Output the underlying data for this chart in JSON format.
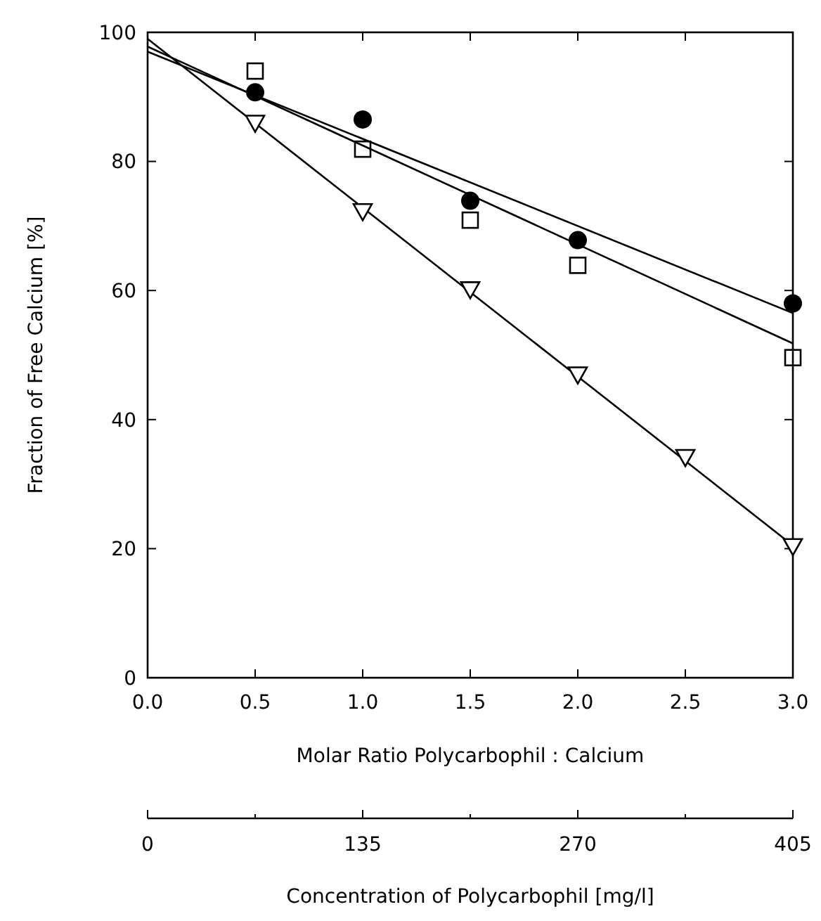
{
  "chart_data": {
    "type": "scatter",
    "xlabel": "Molar Ratio Polycarbophil : Calcium",
    "ylabel": "Fraction of Free Calcium [%]",
    "x2label": "Concentration of Polycarbophil [mg/l]",
    "xlim": [
      0,
      3
    ],
    "xticks": [
      {
        "value": 0,
        "label": "0.0"
      },
      0.5,
      {
        "value": 1,
        "label": "1.0"
      },
      1.5,
      {
        "value": 2,
        "label": "2.0"
      },
      2.5,
      {
        "value": 3,
        "label": "3.0"
      }
    ],
    "x2lim": [
      0,
      405
    ],
    "x2ticks": [
      0,
      {
        "value": 67.5,
        "label": null
      },
      135,
      {
        "value": 202.5,
        "label": null
      },
      270,
      {
        "value": 337.5,
        "label": null
      },
      405
    ],
    "ylim": [
      0,
      100
    ],
    "yticks": [
      0,
      20,
      40,
      60,
      80,
      100
    ],
    "grid": false,
    "series": [
      {
        "marker": "circle",
        "color": "#000000",
        "x": [
          0.5,
          1.0,
          1.5,
          2.0,
          3.0
        ],
        "values": [
          90.7,
          86.5,
          73.9,
          67.8,
          58.0
        ]
      },
      {
        "marker": "square",
        "color": "#000000",
        "x": [
          0.5,
          1.0,
          1.5,
          2.0,
          3.0
        ],
        "values": [
          94.0,
          81.9,
          70.9,
          63.9,
          49.6
        ]
      },
      {
        "marker": "triangle",
        "color": "#000000",
        "x": [
          0.5,
          1.0,
          1.5,
          2.0,
          2.5,
          3.0
        ],
        "values": [
          86.0,
          72.3,
          60.2,
          47.0,
          34.2,
          20.4
        ]
      },
      {
        "type": "line",
        "marker": "none",
        "line_style": "solid",
        "color": "#000000",
        "x": [
          0,
          3
        ],
        "values": [
          97.0,
          56.5
        ]
      },
      {
        "type": "line",
        "marker": "none",
        "line_style": "solid",
        "color": "#000000",
        "x": [
          0,
          3
        ],
        "values": [
          97.8,
          51.8
        ]
      },
      {
        "type": "line",
        "marker": "none",
        "line_style": "solid",
        "color": "#000000",
        "x": [
          0,
          3
        ],
        "values": [
          99.0,
          20.5
        ]
      }
    ]
  }
}
